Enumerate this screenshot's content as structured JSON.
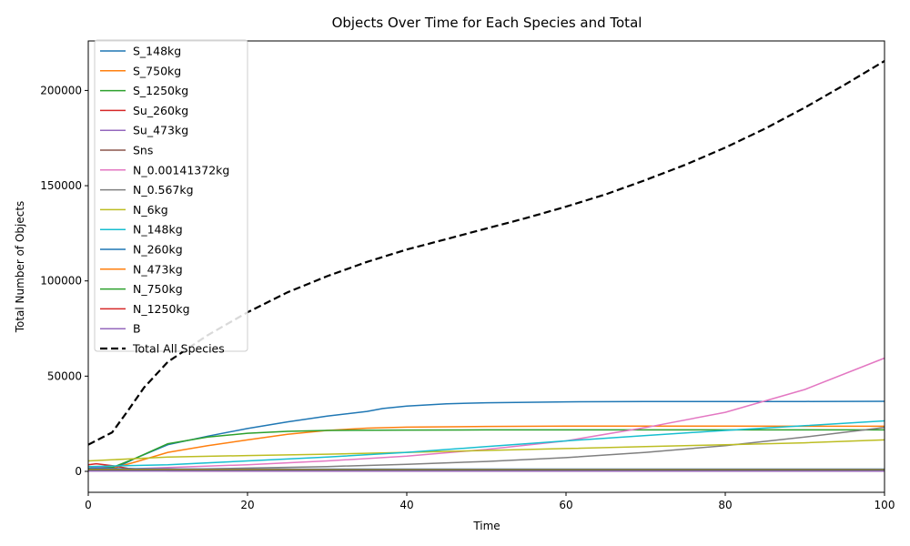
{
  "chart_data": {
    "type": "line",
    "title": "Objects Over Time for Each Species and Total",
    "xlabel": "Time",
    "ylabel": "Total Number of Objects",
    "xlim": [
      0,
      100
    ],
    "ylim": [
      -11000,
      226000
    ],
    "xticks": [
      0,
      20,
      40,
      60,
      80,
      100
    ],
    "yticks": [
      0,
      50000,
      100000,
      150000,
      200000
    ],
    "legend_position": "upper-left",
    "grid": false,
    "series": [
      {
        "name": "S_148kg",
        "color": "#1f77b4",
        "dash": "",
        "x": [
          0,
          3,
          6,
          10,
          15,
          20,
          25,
          30,
          35,
          37,
          40,
          45,
          50,
          60,
          70,
          80,
          90,
          100
        ],
        "y": [
          2500,
          1000,
          7000,
          14000,
          18500,
          22500,
          26000,
          29000,
          31500,
          33000,
          34300,
          35500,
          36000,
          36500,
          36700,
          36700,
          36700,
          36800
        ]
      },
      {
        "name": "S_750kg",
        "color": "#ff7f0e",
        "dash": "",
        "x": [
          0,
          3,
          6,
          10,
          15,
          20,
          25,
          30,
          35,
          40,
          50,
          60,
          70,
          80,
          90,
          100
        ],
        "y": [
          2500,
          1500,
          5000,
          10000,
          13500,
          16500,
          19500,
          21500,
          22700,
          23200,
          23600,
          23800,
          23800,
          23800,
          23700,
          23700
        ]
      },
      {
        "name": "S_1250kg",
        "color": "#2ca02c",
        "dash": "",
        "x": [
          0,
          3,
          6,
          10,
          15,
          20,
          25,
          30,
          40,
          50,
          60,
          70,
          80,
          90,
          100
        ],
        "y": [
          2500,
          2000,
          7000,
          14500,
          18000,
          20000,
          21000,
          21500,
          21700,
          21800,
          21800,
          21800,
          21800,
          21800,
          21800
        ]
      },
      {
        "name": "Su_260kg",
        "color": "#d62728",
        "dash": "",
        "x": [
          0,
          1,
          3,
          5,
          10,
          20,
          40,
          60,
          80,
          100
        ],
        "y": [
          3500,
          4000,
          3000,
          1500,
          300,
          100,
          80,
          80,
          80,
          80
        ]
      },
      {
        "name": "Su_473kg",
        "color": "#9467bd",
        "dash": "",
        "x": [
          0,
          3,
          6,
          10,
          20,
          40,
          60,
          80,
          100
        ],
        "y": [
          2500,
          1500,
          800,
          300,
          200,
          150,
          150,
          150,
          150
        ]
      },
      {
        "name": "Sns",
        "color": "#8c564b",
        "dash": "",
        "x": [
          0,
          10,
          20,
          40,
          60,
          80,
          100
        ],
        "y": [
          600,
          500,
          400,
          300,
          300,
          300,
          300
        ]
      },
      {
        "name": "N_0.00141372kg",
        "color": "#e377c2",
        "dash": "",
        "x": [
          0,
          10,
          20,
          30,
          40,
          50,
          60,
          70,
          80,
          90,
          100
        ],
        "y": [
          500,
          2000,
          3500,
          5500,
          8000,
          11500,
          16000,
          23000,
          31000,
          43000,
          59500
        ]
      },
      {
        "name": "N_0.567kg",
        "color": "#7f7f7f",
        "dash": "",
        "x": [
          0,
          10,
          20,
          30,
          40,
          50,
          60,
          70,
          80,
          90,
          100
        ],
        "y": [
          500,
          1000,
          1700,
          2500,
          3700,
          5200,
          7200,
          10000,
          13500,
          18000,
          23000
        ]
      },
      {
        "name": "N_6kg",
        "color": "#bcbd22",
        "dash": "",
        "x": [
          0,
          5,
          10,
          20,
          30,
          40,
          50,
          60,
          70,
          80,
          90,
          100
        ],
        "y": [
          5500,
          6500,
          7500,
          8300,
          9000,
          10000,
          11000,
          12000,
          13000,
          14000,
          15000,
          16500
        ]
      },
      {
        "name": "N_148kg",
        "color": "#17becf",
        "dash": "",
        "x": [
          0,
          10,
          20,
          30,
          40,
          50,
          60,
          70,
          80,
          90,
          100
        ],
        "y": [
          2500,
          3500,
          5500,
          7500,
          10000,
          13000,
          16000,
          18800,
          21500,
          24000,
          26500
        ]
      },
      {
        "name": "N_260kg",
        "color": "#1f77b4",
        "dash": "",
        "x": [
          0,
          10,
          20,
          40,
          60,
          80,
          100
        ],
        "y": [
          1500,
          1300,
          1200,
          1200,
          1200,
          1200,
          1200
        ]
      },
      {
        "name": "N_473kg",
        "color": "#ff7f0e",
        "dash": "",
        "x": [
          0,
          10,
          20,
          40,
          60,
          80,
          100
        ],
        "y": [
          1000,
          900,
          900,
          800,
          800,
          800,
          800
        ]
      },
      {
        "name": "N_750kg",
        "color": "#2ca02c",
        "dash": "",
        "x": [
          0,
          10,
          20,
          40,
          60,
          80,
          100
        ],
        "y": [
          700,
          600,
          600,
          600,
          600,
          600,
          600
        ]
      },
      {
        "name": "N_1250kg",
        "color": "#d62728",
        "dash": "",
        "x": [
          0,
          10,
          20,
          40,
          60,
          80,
          100
        ],
        "y": [
          300,
          300,
          300,
          300,
          300,
          300,
          300
        ]
      },
      {
        "name": "B",
        "color": "#9467bd",
        "dash": "",
        "x": [
          0,
          10,
          20,
          40,
          60,
          80,
          100
        ],
        "y": [
          200,
          200,
          200,
          200,
          200,
          200,
          200
        ]
      },
      {
        "name": "Total All Species",
        "color": "#000000",
        "dash": "8,4",
        "width": 2.2,
        "x": [
          0,
          3,
          5,
          7,
          10,
          15,
          20,
          25,
          30,
          35,
          40,
          45,
          50,
          55,
          60,
          65,
          70,
          75,
          80,
          85,
          90,
          95,
          100
        ],
        "y": [
          14000,
          20500,
          32000,
          44000,
          57500,
          71500,
          83500,
          94000,
          102500,
          110000,
          116500,
          122000,
          127500,
          133000,
          139000,
          145500,
          153000,
          161000,
          170000,
          180000,
          191000,
          203000,
          215500
        ]
      }
    ]
  }
}
